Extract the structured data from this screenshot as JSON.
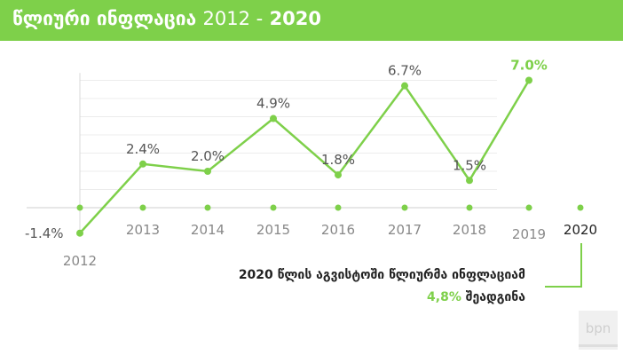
{
  "header": {
    "title": "წლიური ინფლაცია",
    "years_thin": "2012 -",
    "years_bold": "2020",
    "background_color": "#7ed04a"
  },
  "chart_data": {
    "type": "line",
    "categories": [
      "2012",
      "2013",
      "2014",
      "2015",
      "2016",
      "2017",
      "2018",
      "2019",
      "2020"
    ],
    "values": [
      -1.4,
      2.4,
      2.0,
      4.9,
      1.8,
      6.7,
      1.5,
      7.0,
      null
    ],
    "data_labels": [
      "-1.4%",
      "2.4%",
      "2.0%",
      "4.9%",
      "1.8%",
      "6.7%",
      "1.5%",
      "7.0%",
      ""
    ],
    "title": "",
    "xlabel": "",
    "ylabel": "",
    "ylim": [
      -1.5,
      7.5
    ],
    "grid": true,
    "line_color": "#7ed04a"
  },
  "note": {
    "line1": "2020 წლის აგვისტოში წლიურმა ინფლაციამ",
    "highlight": "4,8%",
    "line2_rest": " შეადგინა"
  },
  "logo": {
    "text": "bpn"
  }
}
